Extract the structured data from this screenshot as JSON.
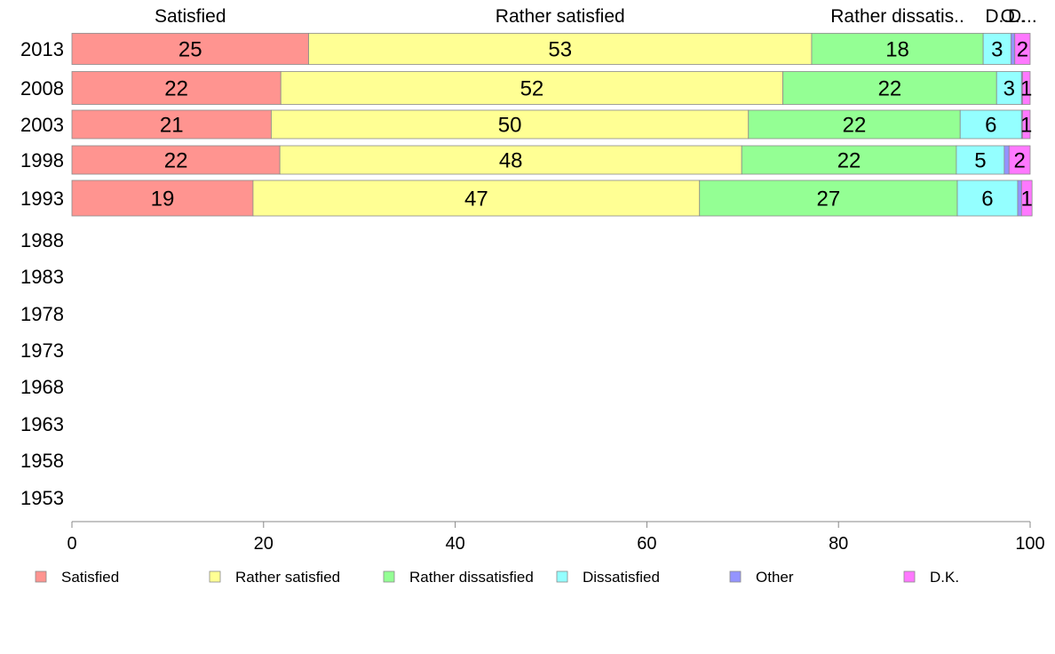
{
  "chart_data": {
    "type": "bar",
    "orientation": "horizontal",
    "stacked": true,
    "categories": [
      "2013",
      "2008",
      "2003",
      "1998",
      "1993",
      "1988",
      "1983",
      "1978",
      "1973",
      "1968",
      "1963",
      "1958",
      "1953"
    ],
    "series": [
      {
        "name": "Satisfied",
        "color": "#ff9490",
        "values": [
          24.7,
          21.8,
          20.8,
          21.7,
          18.9,
          null,
          null,
          null,
          null,
          null,
          null,
          null,
          null
        ],
        "labels": [
          "25",
          "22",
          "21",
          "22",
          "19",
          "",
          "",
          "",
          "",
          "",
          "",
          "",
          ""
        ]
      },
      {
        "name": "Rather satisfied",
        "color": "#ffff94",
        "values": [
          52.5,
          52.4,
          49.8,
          48.2,
          46.6,
          null,
          null,
          null,
          null,
          null,
          null,
          null,
          null
        ],
        "labels": [
          "53",
          "52",
          "50",
          "48",
          "47",
          "",
          "",
          "",
          "",
          "",
          "",
          "",
          ""
        ]
      },
      {
        "name": "Rather dissatisfied",
        "color": "#94ff94",
        "values": [
          17.9,
          22.3,
          22.1,
          22.4,
          26.9,
          null,
          null,
          null,
          null,
          null,
          null,
          null,
          null
        ],
        "labels": [
          "18",
          "22",
          "22",
          "22",
          "27",
          "",
          "",
          "",
          "",
          "",
          "",
          "",
          ""
        ]
      },
      {
        "name": "Dissatisfied",
        "color": "#94ffff",
        "values": [
          2.9,
          2.6,
          6.4,
          5.0,
          6.3,
          null,
          null,
          null,
          null,
          null,
          null,
          null,
          null
        ],
        "labels": [
          "3",
          "3",
          "6",
          "5",
          "6",
          "",
          "",
          "",
          "",
          "",
          "",
          "",
          ""
        ]
      },
      {
        "name": "Other",
        "color": "#9494ff",
        "values": [
          0.4,
          0.1,
          0.1,
          0.5,
          0.4,
          null,
          null,
          null,
          null,
          null,
          null,
          null,
          null
        ],
        "labels": [
          "",
          "",
          "",
          "",
          "",
          "",
          "",
          "",
          "",
          "",
          "",
          "",
          ""
        ]
      },
      {
        "name": "D.K.",
        "color": "#ff78ff",
        "values": [
          1.6,
          0.8,
          0.8,
          2.2,
          1.1,
          null,
          null,
          null,
          null,
          null,
          null,
          null,
          null
        ],
        "labels": [
          "2",
          "1",
          "1",
          "2",
          "1",
          "",
          "",
          "",
          "",
          "",
          "",
          "",
          ""
        ]
      }
    ],
    "column_headers": [
      "Satisfied",
      "Rather satisfied",
      "Rather dissatis..",
      "D..",
      "O..",
      "D..."
    ],
    "xlim": [
      0,
      100
    ],
    "xticks": [
      0,
      20,
      40,
      60,
      80,
      100
    ],
    "grid": false,
    "legend": {
      "position": "bottom",
      "entries": [
        "Satisfied",
        "Rather satisfied",
        "Rather dissatisfied",
        "Dissatisfied",
        "Other",
        "D.K."
      ]
    }
  }
}
